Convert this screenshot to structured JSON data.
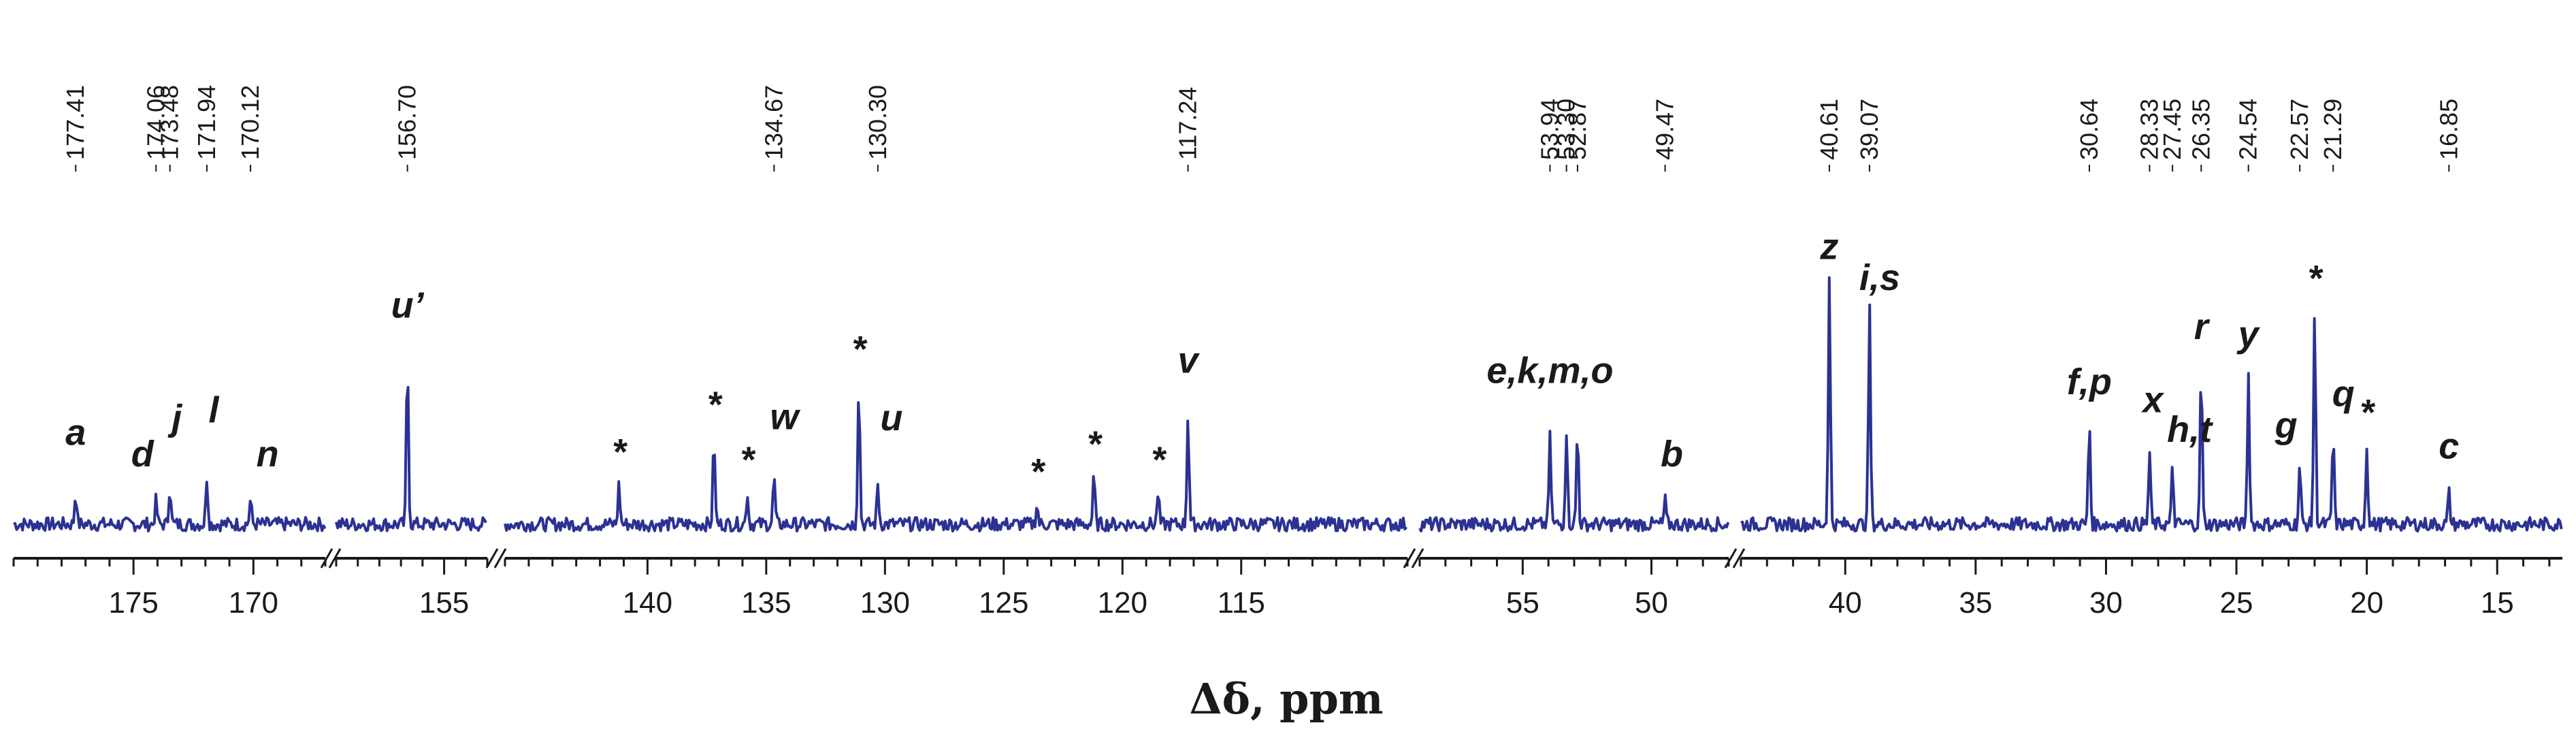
{
  "chart_data": {
    "type": "line",
    "xlabel": "Δδ, ppm",
    "x_reversed": true,
    "broken_axis": true,
    "line_color": "#2b3294",
    "segments": [
      {
        "xlim": [
          180,
          167
        ],
        "ticks": [
          175,
          170
        ]
      },
      {
        "xlim": [
          160,
          153
        ],
        "ticks": [
          155
        ]
      },
      {
        "xlim": [
          146,
          108
        ],
        "ticks": [
          140,
          135,
          130,
          125,
          120,
          115
        ]
      },
      {
        "xlim": [
          59,
          47
        ],
        "ticks": [
          55,
          50
        ]
      },
      {
        "xlim": [
          44,
          12.5
        ],
        "ticks": [
          40,
          35,
          30,
          25,
          20,
          15
        ]
      }
    ],
    "chemical_shift_labels": [
      "177.41",
      "174.06",
      "173.48",
      "171.94",
      "170.12",
      "156.70",
      "134.67",
      "130.30",
      "117.24",
      "53.94",
      "53.30",
      "52.87",
      "49.47",
      "40.61",
      "39.07",
      "30.64",
      "28.33",
      "27.45",
      "26.35",
      "24.54",
      "22.57",
      "21.29",
      "16.85"
    ],
    "peaks": [
      {
        "x": 177.41,
        "height": 0.08,
        "label": "a"
      },
      {
        "x": 174.06,
        "height": 0.06,
        "label": "d"
      },
      {
        "x": 173.48,
        "height": 0.1,
        "label": "j"
      },
      {
        "x": 171.94,
        "height": 0.12,
        "label": "l"
      },
      {
        "x": 170.12,
        "height": 0.06,
        "label": "n"
      },
      {
        "x": 156.7,
        "height": 0.42,
        "label": "u’"
      },
      {
        "x": 141.2,
        "height": 0.1,
        "label": "*"
      },
      {
        "x": 137.2,
        "height": 0.22,
        "label": "*"
      },
      {
        "x": 135.8,
        "height": 0.08,
        "label": "*"
      },
      {
        "x": 134.67,
        "height": 0.12,
        "label": "w"
      },
      {
        "x": 131.1,
        "height": 0.36,
        "label": "*"
      },
      {
        "x": 130.3,
        "height": 0.1,
        "label": "u"
      },
      {
        "x": 123.6,
        "height": 0.05,
        "label": "*"
      },
      {
        "x": 121.2,
        "height": 0.12,
        "label": "*"
      },
      {
        "x": 118.5,
        "height": 0.08,
        "label": "*"
      },
      {
        "x": 117.24,
        "height": 0.28,
        "label": "v"
      },
      {
        "x": 53.94,
        "height": 0.22,
        "label": "e,k,m,o"
      },
      {
        "x": 53.3,
        "height": 0.24,
        "label": ""
      },
      {
        "x": 52.87,
        "height": 0.24,
        "label": ""
      },
      {
        "x": 49.47,
        "height": 0.06,
        "label": "b"
      },
      {
        "x": 40.61,
        "height": 0.62,
        "label": "z"
      },
      {
        "x": 39.07,
        "height": 0.55,
        "label": "i,s"
      },
      {
        "x": 30.64,
        "height": 0.26,
        "label": "f,p"
      },
      {
        "x": 28.33,
        "height": 0.18,
        "label": "x"
      },
      {
        "x": 27.45,
        "height": 0.14,
        "label": "h,t"
      },
      {
        "x": 26.35,
        "height": 0.4,
        "label": "r"
      },
      {
        "x": 24.54,
        "height": 0.38,
        "label": "y"
      },
      {
        "x": 22.57,
        "height": 0.15,
        "label": "g"
      },
      {
        "x": 22.0,
        "height": 0.54,
        "label": "*"
      },
      {
        "x": 21.29,
        "height": 0.23,
        "label": "q"
      },
      {
        "x": 20.0,
        "height": 0.2,
        "label": "*"
      },
      {
        "x": 16.85,
        "height": 0.08,
        "label": "c"
      }
    ]
  }
}
